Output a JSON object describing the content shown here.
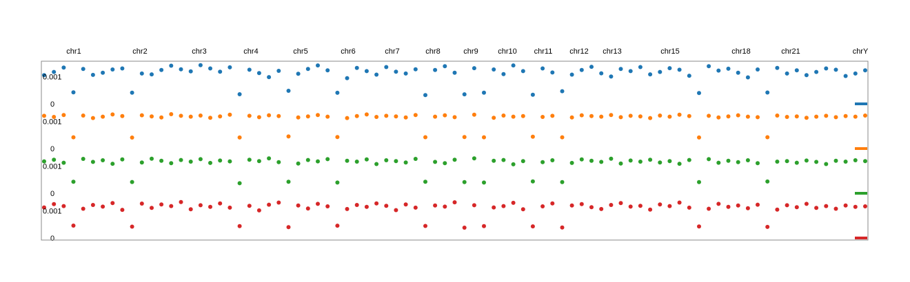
{
  "chart_data": {
    "type": "scatter",
    "title": "",
    "xlabel": "",
    "ylabel": "",
    "chromosome_labels": [
      "chr1",
      "chr2",
      "chr3",
      "chr4",
      "chr5",
      "chr6",
      "chr7",
      "chr8",
      "chr9",
      "chr10",
      "chr11",
      "chr12",
      "chr13",
      "chr15",
      "chr18",
      "chr21",
      "chrY"
    ],
    "ytick_labels": [
      "0.001",
      "0"
    ],
    "ylim": [
      0,
      0.0015
    ],
    "legend": "none",
    "grid": false,
    "series": [
      {
        "color": "#1f77b4",
        "level": 0.0012,
        "values": [
          0.00106,
          0.00118,
          0.00134,
          0.00121,
          0.00129,
          0.00107,
          0.00115,
          0.00127,
          0.00131,
          0.00118,
          0.00112,
          0.00109,
          0.00125,
          0.00141,
          0.00128,
          0.0012,
          0.00143,
          0.00131,
          0.00119,
          0.00135,
          0.00102,
          0.00126,
          0.00114,
          0.00099,
          0.00122,
          0.00138,
          0.00111,
          0.00129,
          0.00142,
          0.00124,
          0.00117,
          0.00095,
          0.00133,
          0.00121,
          0.00108,
          0.00136,
          0.00119,
          0.00112,
          0.00128,
          0.00093,
          0.00125,
          0.00139,
          0.00115,
          0.00101,
          0.00132,
          0.00118,
          0.00127,
          0.0011,
          0.00142,
          0.00121,
          0.00096,
          0.00131,
          0.00116,
          0.00134,
          0.00108,
          0.00125,
          0.00137,
          0.00113,
          0.00101,
          0.00129,
          0.00121,
          0.00136,
          0.00109,
          0.00118,
          0.00132,
          0.00126,
          0.00104,
          0.00114,
          0.00139,
          0.00123,
          0.0013,
          0.00115,
          0.00098,
          0.00127,
          0.0012,
          0.00133,
          0.00112,
          0.00124,
          0.00106,
          0.00118,
          0.00131,
          0.00126,
          0.00103,
          0.00112,
          0.00124
        ]
      },
      {
        "color": "#ff7f0e",
        "level": 0.0012,
        "values": [
          0.00121,
          0.00117,
          0.00124,
          0.00119,
          0.00122,
          0.00113,
          0.00118,
          0.00126,
          0.0012,
          0.00116,
          0.00123,
          0.00119,
          0.00115,
          0.00127,
          0.00121,
          0.00118,
          0.00122,
          0.00114,
          0.00119,
          0.00125,
          0.00117,
          0.00121,
          0.00116,
          0.00123,
          0.0012,
          0.00128,
          0.00115,
          0.00119,
          0.00124,
          0.00118,
          0.00122,
          0.00113,
          0.0012,
          0.00126,
          0.00117,
          0.00121,
          0.00119,
          0.00115,
          0.00124,
          0.0012,
          0.00118,
          0.00123,
          0.00116,
          0.00121,
          0.00125,
          0.00119,
          0.00114,
          0.00122,
          0.00118,
          0.0012,
          0.00126,
          0.00117,
          0.00121,
          0.00119,
          0.00115,
          0.00123,
          0.0012,
          0.00118,
          0.00124,
          0.00116,
          0.00121,
          0.00119,
          0.00113,
          0.00122,
          0.00118,
          0.00125,
          0.0012,
          0.00117,
          0.00121,
          0.00115,
          0.00119,
          0.00123,
          0.00118,
          0.00116,
          0.0012,
          0.00122,
          0.00117,
          0.00119,
          0.00114,
          0.00118,
          0.00121,
          0.00116,
          0.0012,
          0.00118,
          0.00122
        ]
      },
      {
        "color": "#2ca02c",
        "level": 0.0012,
        "values": [
          0.00118,
          0.00124,
          0.00113,
          0.00121,
          0.00127,
          0.00116,
          0.00122,
          0.00109,
          0.00125,
          0.00119,
          0.00114,
          0.00128,
          0.0012,
          0.00111,
          0.00123,
          0.00117,
          0.00126,
          0.00112,
          0.00121,
          0.00118,
          0.00106,
          0.00124,
          0.00119,
          0.00129,
          0.00115,
          0.00121,
          0.0011,
          0.00123,
          0.00118,
          0.00126,
          0.00113,
          0.0012,
          0.00117,
          0.00125,
          0.00108,
          0.00122,
          0.00119,
          0.00114,
          0.00127,
          0.00121,
          0.00116,
          0.00111,
          0.00124,
          0.00118,
          0.00129,
          0.00113,
          0.0012,
          0.00123,
          0.00107,
          0.00119,
          0.00126,
          0.00115,
          0.00122,
          0.00118,
          0.00112,
          0.00125,
          0.0012,
          0.00116,
          0.00128,
          0.0011,
          0.00121,
          0.00117,
          0.00124,
          0.00114,
          0.00119,
          0.00109,
          0.00123,
          0.00118,
          0.00126,
          0.00113,
          0.0012,
          0.00115,
          0.00122,
          0.00111,
          0.00124,
          0.00117,
          0.00119,
          0.00113,
          0.00121,
          0.00116,
          0.00108,
          0.0012,
          0.00117,
          0.00122,
          0.00119
        ]
      },
      {
        "color": "#d62728",
        "level": 0.0012,
        "values": [
          0.00113,
          0.00125,
          0.00118,
          0.00131,
          0.00108,
          0.00122,
          0.00116,
          0.00129,
          0.00104,
          0.0012,
          0.00127,
          0.00111,
          0.00124,
          0.00118,
          0.00133,
          0.00106,
          0.00121,
          0.00115,
          0.00128,
          0.00112,
          0.00125,
          0.00119,
          0.00102,
          0.00123,
          0.00131,
          0.00114,
          0.0012,
          0.00109,
          0.00126,
          0.00117,
          0.0013,
          0.00107,
          0.00122,
          0.00115,
          0.00128,
          0.00119,
          0.00103,
          0.00124,
          0.00112,
          0.00127,
          0.0012,
          0.00116,
          0.00132,
          0.00109,
          0.00121,
          0.00125,
          0.00113,
          0.00118,
          0.0013,
          0.00106,
          0.00123,
          0.00117,
          0.00128,
          0.00111,
          0.0012,
          0.00125,
          0.00114,
          0.00107,
          0.00122,
          0.00129,
          0.00116,
          0.00119,
          0.00105,
          0.00124,
          0.00118,
          0.00131,
          0.00112,
          0.00121,
          0.00108,
          0.00126,
          0.00115,
          0.0012,
          0.0011,
          0.00123,
          0.00117,
          0.00105,
          0.00121,
          0.00114,
          0.00126,
          0.00111,
          0.00118,
          0.00108,
          0.0012,
          0.00115,
          0.00117
        ]
      }
    ]
  }
}
